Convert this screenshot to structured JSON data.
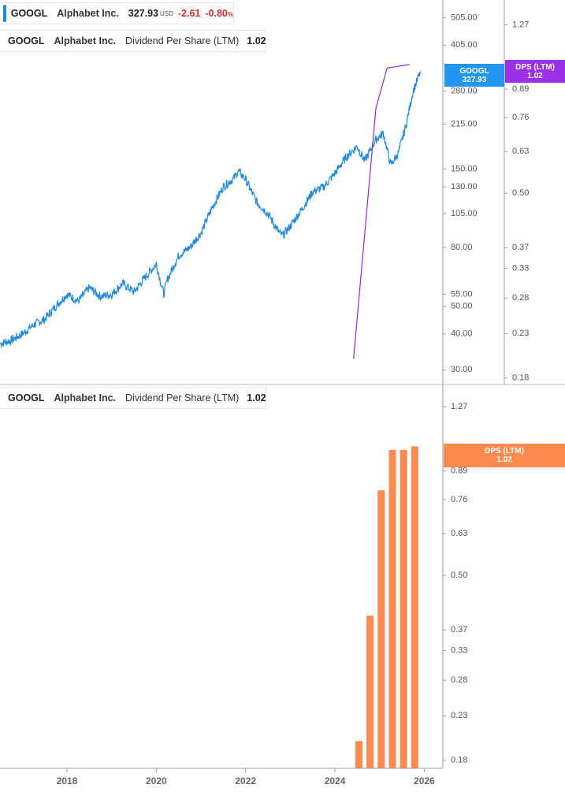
{
  "colors": {
    "price": "#1e88e5",
    "dps_line": "#8a2be2",
    "dps_tag": "#9b30e6",
    "bars": "#ff8a50",
    "price_tag": "#2196f3",
    "negative": "#d32f2f"
  },
  "legend_top": {
    "ticker": "GOOGL",
    "name": "Alphabet Inc.",
    "price": "327.93",
    "currency": "USD",
    "change": "-2.61",
    "change_pct": "-0.80",
    "pct_sign": "%"
  },
  "legend_dps_top": {
    "ticker": "GOOGL",
    "name": "Alphabet Inc.",
    "indicator": "Dividend Per Share (LTM)",
    "value": "1.02"
  },
  "legend_dps_bottom": {
    "ticker": "GOOGL",
    "name": "Alphabet Inc.",
    "indicator": "Dividend Per Share (LTM)",
    "value": "1.02"
  },
  "tags": {
    "price": {
      "line1": "GOOGL",
      "line2": "327.93"
    },
    "dps_top": {
      "line1": "DPS (LTM)",
      "line2": "1.02"
    },
    "dps_bottom": {
      "line1": "DPS (LTM)",
      "line2": "1.02"
    }
  },
  "chart_data": [
    {
      "type": "line",
      "series": [
        {
          "name": "GOOGL",
          "x": [
            "2016-07",
            "2016-10",
            "2017-01",
            "2017-04",
            "2017-07",
            "2017-10",
            "2018-01",
            "2018-04",
            "2018-07",
            "2018-10",
            "2019-01",
            "2019-04",
            "2019-07",
            "2019-10",
            "2020-01",
            "2020-03",
            "2020-04",
            "2020-07",
            "2020-10",
            "2021-01",
            "2021-04",
            "2021-07",
            "2021-10",
            "2021-11",
            "2022-01",
            "2022-04",
            "2022-07",
            "2022-10",
            "2022-11",
            "2023-01",
            "2023-04",
            "2023-07",
            "2023-10",
            "2024-01",
            "2024-04",
            "2024-07",
            "2024-09",
            "2024-12",
            "2025-02",
            "2025-04",
            "2025-06",
            "2025-08",
            "2025-10",
            "2025-12"
          ],
          "values": [
            37,
            38,
            40,
            43,
            45,
            50,
            55,
            52,
            58,
            54,
            55,
            60,
            56,
            63,
            70,
            55,
            62,
            75,
            80,
            90,
            110,
            130,
            140,
            148,
            138,
            115,
            105,
            90,
            88,
            95,
            108,
            125,
            130,
            145,
            165,
            180,
            160,
            190,
            200,
            155,
            170,
            210,
            280,
            327.93
          ]
        },
        {
          "name": "Dividend Per Share (LTM)",
          "x": [
            "2024-06",
            "2024-12",
            "2025-03",
            "2025-09"
          ],
          "values": [
            0.2,
            0.8,
            1.0,
            1.02
          ]
        }
      ],
      "y_left_ticks": [
        "505.00",
        "405.00",
        "280.00",
        "215.00",
        "150.00",
        "130.00",
        "105.00",
        "80.00",
        "55.00",
        "50.00",
        "40.00",
        "30.00"
      ],
      "y_right_ticks": [
        "1.27",
        "0.89",
        "0.76",
        "0.63",
        "0.50",
        "0.37",
        "0.33",
        "0.28",
        "0.23",
        "0.18"
      ],
      "ylim_left": [
        27,
        560
      ],
      "ylim_right": [
        0.175,
        1.42
      ],
      "scale": "log",
      "grid": false
    },
    {
      "type": "bar",
      "categories": [
        "2024-06",
        "2024-09",
        "2024-12",
        "2025-03",
        "2025-06",
        "2025-09"
      ],
      "values": [
        0.2,
        0.4,
        0.8,
        1.0,
        1.0,
        1.02
      ],
      "y_ticks": [
        "1.27",
        "1.00",
        "0.89",
        "0.76",
        "0.63",
        "0.50",
        "0.37",
        "0.33",
        "0.28",
        "0.23",
        "0.18"
      ],
      "ylim": [
        0.172,
        1.38
      ],
      "scale": "log",
      "x_ticks": [
        "2018",
        "2020",
        "2022",
        "2024",
        "2026"
      ],
      "xlim": [
        "2016-07",
        "2026-06"
      ],
      "grid": false
    }
  ]
}
